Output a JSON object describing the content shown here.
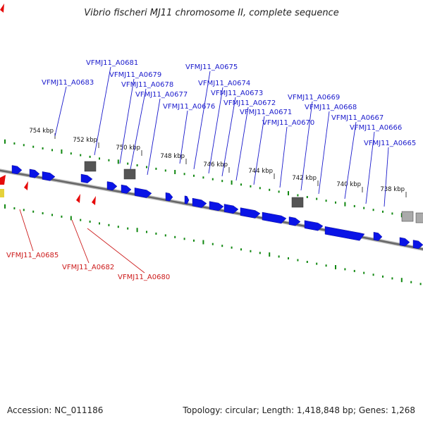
{
  "title": "Vibrio fischeri MJ11 chromosome II, complete sequence",
  "footer": {
    "accession": "Accession: NC_011186",
    "summary": "Topology: circular; Length: 1,418,848 bp; Genes: 1,268"
  },
  "colors": {
    "forward_gene": "#0a14e6",
    "reverse_gene": "#e60a0a",
    "feature_gray": "#555555",
    "tick_green": "#118811",
    "label_blue": "#1a1acc",
    "label_red": "#cc1a1a"
  },
  "kbp_ticks": [
    "754 kbp",
    "752 kbp",
    "750 kbp",
    "748 kbp",
    "746 kbp",
    "744 kbp",
    "742 kbp",
    "740 kbp",
    "738 kbp"
  ],
  "labels_top": [
    "VFMJ11_A0683",
    "VFMJ11_A0681",
    "VFMJ11_A0679",
    "VFMJ11_A0678",
    "VFMJ11_A0677",
    "VFMJ11_A0676",
    "VFMJ11_A0675",
    "VFMJ11_A0674",
    "VFMJ11_A0673",
    "VFMJ11_A0672",
    "VFMJ11_A0671",
    "VFMJ11_A0670",
    "VFMJ11_A0669",
    "VFMJ11_A0668",
    "VFMJ11_A0667",
    "VFMJ11_A0666",
    "VFMJ11_A0665"
  ],
  "labels_bottom": [
    "VFMJ11_A0685",
    "VFMJ11_A0682",
    "VFMJ11_A0680"
  ]
}
